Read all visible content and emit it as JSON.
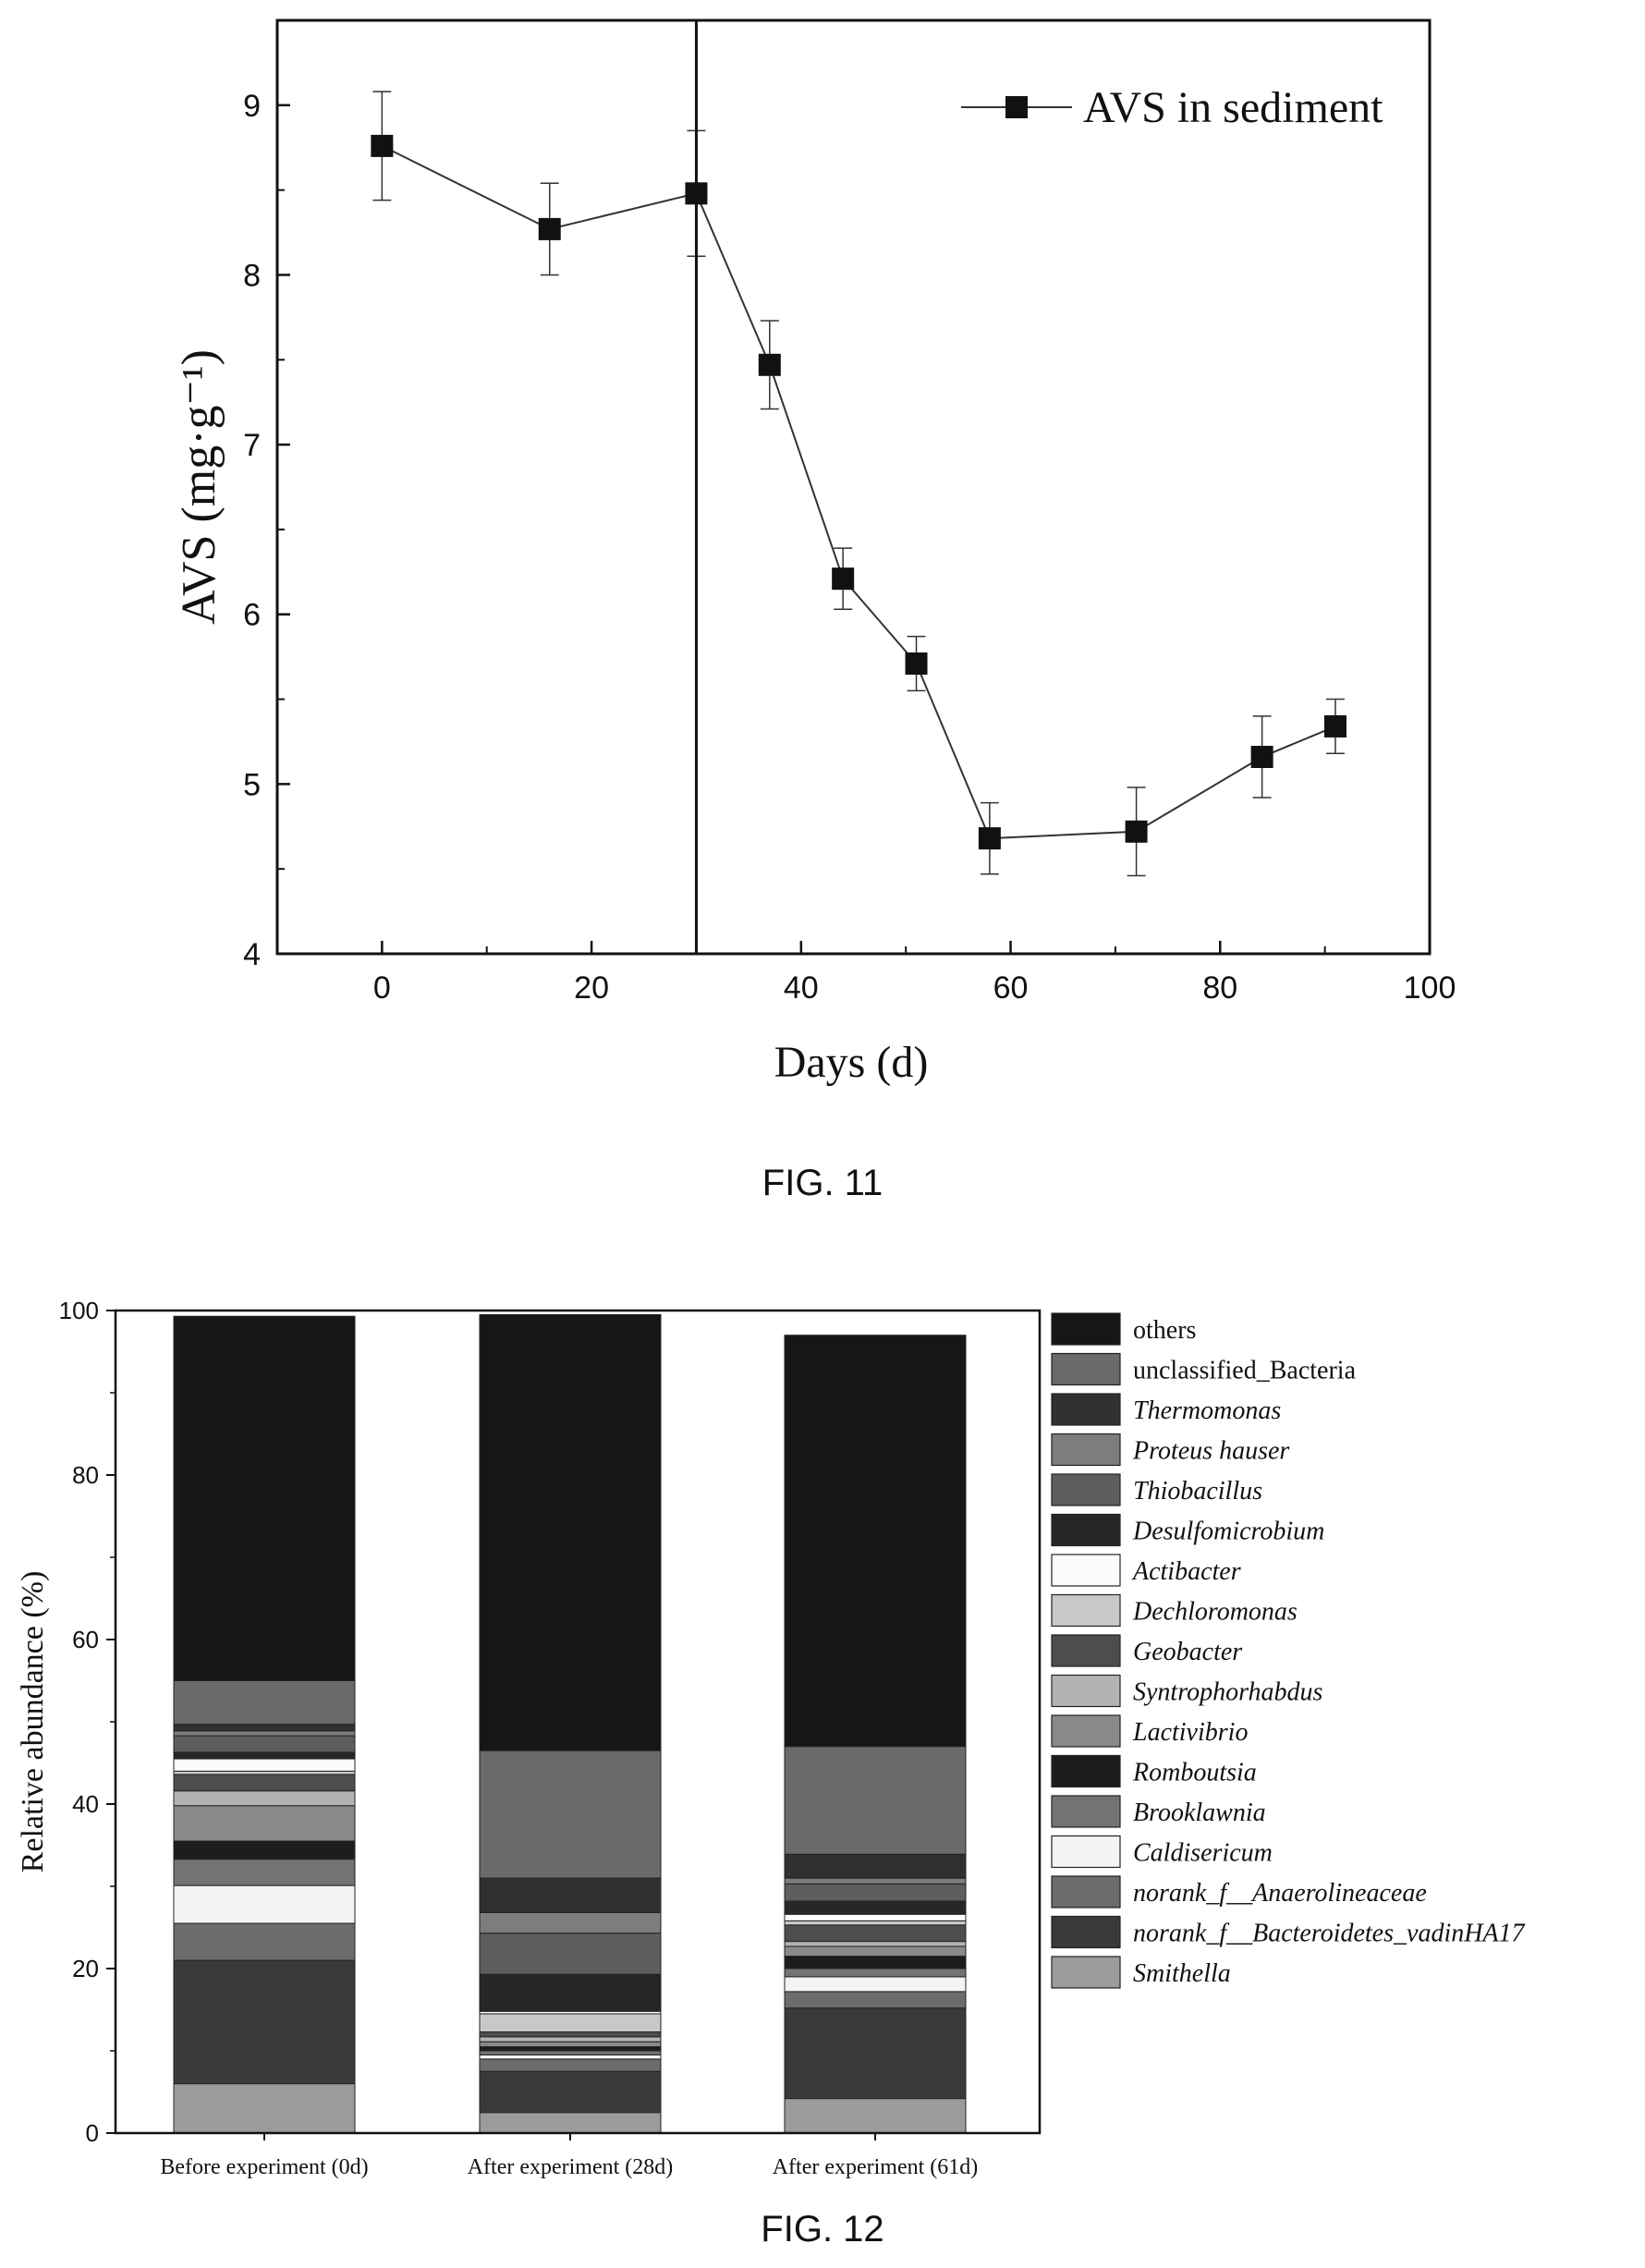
{
  "captions": {
    "fig11": "FIG. 11",
    "fig12": "FIG. 12"
  },
  "chart_data": [
    {
      "type": "line",
      "x": [
        0,
        16,
        30,
        37,
        44,
        51,
        58,
        72,
        84,
        91
      ],
      "series": [
        {
          "name": "AVS in sediment",
          "values": [
            8.76,
            8.27,
            8.48,
            7.47,
            6.21,
            5.71,
            4.68,
            4.72,
            5.16,
            5.34
          ],
          "errors": [
            0.32,
            0.27,
            0.37,
            0.26,
            0.18,
            0.16,
            0.21,
            0.26,
            0.24,
            0.16
          ]
        }
      ],
      "xlabel": "Days (d)",
      "ylabel": "AVS (mg·g⁻¹)",
      "xlim": [
        -10,
        100
      ],
      "ylim": [
        4,
        9.5
      ],
      "xticks": [
        0,
        20,
        40,
        60,
        80,
        100
      ],
      "yticks": [
        4,
        5,
        6,
        7,
        8,
        9
      ],
      "vline_x": 30,
      "legend_position": "top-right",
      "grid": false
    },
    {
      "type": "bar",
      "stacked": true,
      "categories": [
        "Before experiment (0d)",
        "After experiment (28d)",
        "After experiment (61d)"
      ],
      "ylabel": "Relative abundance (%)",
      "ylim": [
        0,
        100
      ],
      "yticks": [
        0,
        20,
        40,
        60,
        80,
        100
      ],
      "legend_position": "right",
      "grid": false,
      "series": [
        {
          "name": "Smithella",
          "italic": true,
          "color": "#9b9b9b",
          "values": [
            6,
            2.5,
            4.2
          ]
        },
        {
          "name": "norank_f__Bacteroidetes_vadinHA17",
          "italic": true,
          "color": "#3a3a3a",
          "values": [
            15,
            5,
            11
          ]
        },
        {
          "name": "norank_f__Anaerolineaceae",
          "italic": true,
          "color": "#6c6c6c",
          "values": [
            4.5,
            1.5,
            2
          ]
        },
        {
          "name": "Caldisericum",
          "italic": true,
          "color": "#f4f4f4",
          "values": [
            4.6,
            0.5,
            1.8
          ]
        },
        {
          "name": "Brooklawnia",
          "italic": true,
          "color": "#737373",
          "values": [
            3.2,
            0.5,
            1
          ]
        },
        {
          "name": "Romboutsia",
          "italic": true,
          "color": "#1d1d1d",
          "values": [
            2.2,
            0.5,
            1.5
          ]
        },
        {
          "name": "Lactivibrio",
          "italic": true,
          "color": "#8a8a8a",
          "values": [
            4.3,
            0.6,
            1.2
          ]
        },
        {
          "name": "Syntrophorhabdus",
          "italic": true,
          "color": "#b3b3b3",
          "values": [
            1.8,
            0.6,
            0.6
          ]
        },
        {
          "name": "Geobacter",
          "italic": true,
          "color": "#4d4d4d",
          "values": [
            2,
            0.6,
            2
          ]
        },
        {
          "name": "Dechloromonas",
          "italic": true,
          "color": "#c8c8c8",
          "values": [
            0.4,
            2.2,
            0.5
          ]
        },
        {
          "name": "Actibacter",
          "italic": true,
          "color": "#fbfbfb",
          "values": [
            1.5,
            0.3,
            0.8
          ]
        },
        {
          "name": "Desulfomicrobium",
          "italic": true,
          "color": "#262626",
          "values": [
            0.8,
            4.5,
            1.6
          ]
        },
        {
          "name": "Thiobacillus",
          "italic": true,
          "color": "#5e5e5e",
          "values": [
            2,
            5,
            2.1
          ]
        },
        {
          "name": "Proteus hauser",
          "italic": true,
          "color": "#7d7d7d",
          "values": [
            0.6,
            2.5,
            0.7
          ]
        },
        {
          "name": "Thermomonas",
          "italic": true,
          "color": "#303030",
          "values": [
            0.8,
            4.2,
            2.9
          ]
        },
        {
          "name": "unclassified_Bacteria",
          "italic": false,
          "color": "#6a6a6a",
          "values": [
            5.3,
            15.5,
            13.1
          ]
        },
        {
          "name": "others",
          "italic": false,
          "color": "#161616",
          "values": [
            44.3,
            53,
            50
          ]
        }
      ]
    }
  ]
}
